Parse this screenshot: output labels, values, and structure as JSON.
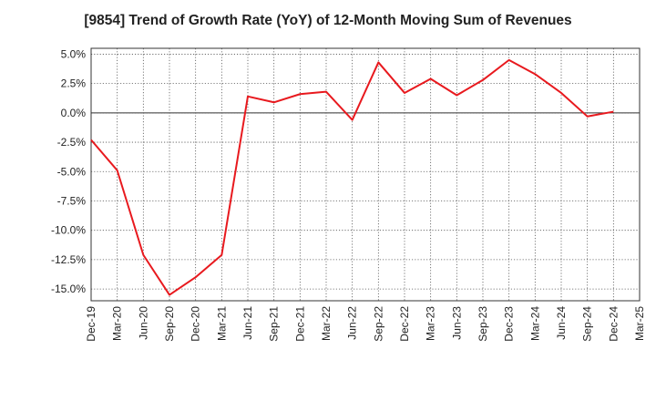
{
  "chart_data": {
    "type": "line",
    "title": "[9854]  Trend of Growth Rate (YoY) of 12-Month Moving Sum of Revenues",
    "xlabel": "",
    "ylabel": "",
    "x_tick_labels": [
      "Dec-19",
      "Mar-20",
      "Jun-20",
      "Sep-20",
      "Dec-20",
      "Mar-21",
      "Jun-21",
      "Sep-21",
      "Dec-21",
      "Mar-22",
      "Jun-22",
      "Sep-22",
      "Dec-22",
      "Mar-23",
      "Jun-23",
      "Sep-23",
      "Dec-23",
      "Mar-24",
      "Jun-24",
      "Sep-24",
      "Dec-24",
      "Mar-25"
    ],
    "y_tick_labels": [
      "5.0%",
      "2.5%",
      "0.0%",
      "-2.5%",
      "-5.0%",
      "-7.5%",
      "-10.0%",
      "-12.5%",
      "-15.0%"
    ],
    "y_ticks": [
      5,
      2.5,
      0,
      -2.5,
      -5,
      -7.5,
      -10,
      -12.5,
      -15
    ],
    "ylim": [
      -16,
      5.5
    ],
    "grid": true,
    "series": [
      {
        "color": "#e8191e",
        "x": [
          "Dec-19",
          "Mar-20",
          "Jun-20",
          "Sep-20",
          "Dec-20",
          "Mar-21",
          "Jun-21",
          "Sep-21",
          "Dec-21",
          "Mar-22",
          "Jun-22",
          "Sep-22",
          "Dec-22",
          "Mar-23",
          "Jun-23",
          "Sep-23",
          "Dec-23",
          "Mar-24",
          "Jun-24",
          "Sep-24",
          "Dec-24"
        ],
        "values": [
          -2.3,
          -4.9,
          -12.1,
          -15.5,
          -14.0,
          -12.1,
          1.4,
          0.9,
          1.6,
          1.8,
          -0.6,
          4.3,
          1.7,
          2.9,
          1.5,
          2.8,
          4.5,
          3.3,
          1.7,
          -0.3,
          0.1
        ]
      }
    ]
  }
}
